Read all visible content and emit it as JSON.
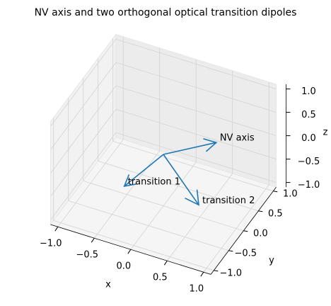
{
  "chart_data": {
    "type": "quiver3d",
    "title": "NV axis and two orthogonal optical transition dipoles",
    "xlabel": "x",
    "ylabel": "y",
    "zlabel": "z",
    "origin": [
      0,
      0,
      0
    ],
    "color": "#1f77b4",
    "series": [
      {
        "name": "NV axis",
        "u": 0.49,
        "v": 0.58,
        "w": 0.0
      },
      {
        "name": "transition 1",
        "u": -0.17,
        "v": -0.9,
        "w": 0.0
      },
      {
        "name": "transition 2",
        "u": 0.62,
        "v": -0.33,
        "w": -0.5
      }
    ],
    "xlim": [
      -1.1,
      1.1
    ],
    "ylim": [
      -1.1,
      1.1
    ],
    "zlim": [
      -1.1,
      1.1
    ],
    "xticks": [
      {
        "value": -1.0,
        "label": "−1.0"
      },
      {
        "value": -0.5,
        "label": "−0.5"
      },
      {
        "value": 0.0,
        "label": "0.0"
      },
      {
        "value": 0.5,
        "label": "0.5"
      },
      {
        "value": 1.0,
        "label": "1.0"
      }
    ],
    "yticks": [
      {
        "value": -1.0,
        "label": "−1.0"
      },
      {
        "value": -0.5,
        "label": "−0.5"
      },
      {
        "value": 0.0,
        "label": "0.0"
      },
      {
        "value": 0.5,
        "label": "0.5"
      },
      {
        "value": 1.0,
        "label": "1.0"
      }
    ],
    "zticks": [
      {
        "value": -1.0,
        "label": "−1.0"
      },
      {
        "value": -0.5,
        "label": "−0.5"
      },
      {
        "value": 0.0,
        "label": "0.0"
      },
      {
        "value": 0.5,
        "label": "0.5"
      },
      {
        "value": 1.0,
        "label": "1.0"
      }
    ],
    "grid": true
  }
}
